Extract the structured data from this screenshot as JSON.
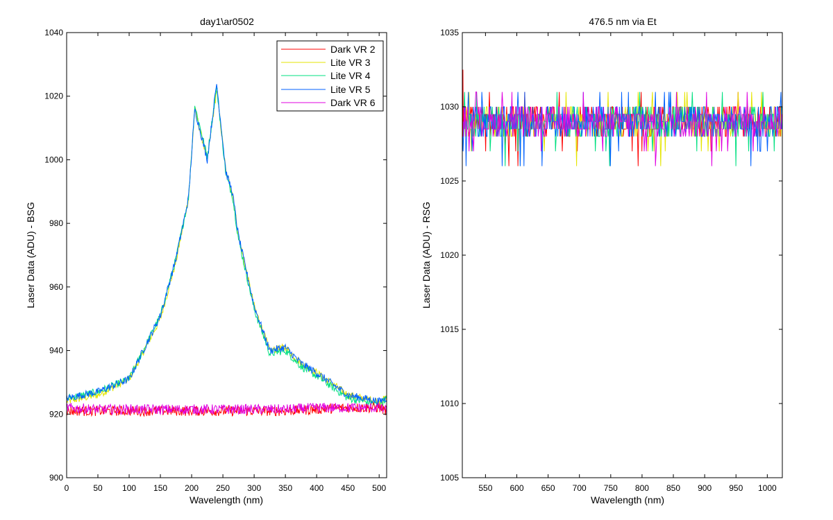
{
  "chart_data": [
    {
      "type": "line",
      "title": "day1\\ar0502",
      "xlabel": "Wavelength (nm)",
      "ylabel": "Laser Data (ADU) - BSG",
      "xlim": [
        0,
        512
      ],
      "ylim": [
        900,
        1040
      ],
      "xticks": [
        0,
        50,
        100,
        150,
        200,
        250,
        300,
        350,
        400,
        450,
        500
      ],
      "yticks": [
        900,
        920,
        940,
        960,
        980,
        1000,
        1020,
        1040
      ],
      "grid": false,
      "legend_position": "top-right",
      "series": [
        {
          "name": "Dark VR 2",
          "color": "#ff0000",
          "x": [
            0,
            50,
            100,
            150,
            200,
            250,
            300,
            350,
            400,
            450,
            500,
            512
          ],
          "y": [
            921,
            921,
            921,
            921,
            921,
            921,
            921,
            921,
            921.5,
            922,
            922,
            921
          ]
        },
        {
          "name": "Lite VR 3",
          "color": "#e5e500",
          "x": [
            0,
            50,
            100,
            150,
            175,
            195,
            205,
            225,
            240,
            255,
            265,
            275,
            300,
            325,
            350,
            375,
            400,
            450,
            500,
            512
          ],
          "y": [
            924,
            926,
            931,
            950,
            968,
            988,
            1016,
            1000,
            1022,
            996,
            990,
            976,
            954,
            940,
            941,
            936,
            933,
            926,
            924,
            925
          ]
        },
        {
          "name": "Lite VR 4",
          "color": "#00e080",
          "x": [
            0,
            50,
            100,
            150,
            175,
            195,
            205,
            225,
            240,
            255,
            265,
            275,
            300,
            325,
            350,
            375,
            400,
            450,
            500,
            512
          ],
          "y": [
            925,
            927,
            931,
            951,
            969,
            988,
            1017,
            1001,
            1023,
            995,
            989,
            975,
            953,
            939,
            940,
            935,
            932,
            925,
            923,
            925
          ]
        },
        {
          "name": "Lite VR 5",
          "color": "#0060ff",
          "x": [
            0,
            50,
            100,
            150,
            175,
            195,
            205,
            225,
            240,
            255,
            265,
            275,
            300,
            325,
            350,
            375,
            400,
            450,
            500,
            512
          ],
          "y": [
            925,
            927,
            931,
            951,
            969,
            988,
            1016,
            1000,
            1024,
            996,
            990,
            976,
            954,
            940,
            941,
            936,
            933,
            926,
            924,
            925
          ]
        },
        {
          "name": "Dark VR 6",
          "color": "#e000e0",
          "x": [
            0,
            50,
            100,
            150,
            200,
            250,
            300,
            350,
            400,
            450,
            500,
            512
          ],
          "y": [
            922,
            921.5,
            921.5,
            921.5,
            921.5,
            921.5,
            921.5,
            921.5,
            922,
            922,
            922,
            921
          ]
        }
      ]
    },
    {
      "type": "line",
      "title": "476.5 nm via Et",
      "xlabel": "Wavelength (nm)",
      "ylabel": "Laser Data (ADU) - RSG",
      "xlim": [
        513,
        1024
      ],
      "ylim": [
        1005,
        1035
      ],
      "xticks": [
        550,
        600,
        650,
        700,
        750,
        800,
        850,
        900,
        950,
        1000
      ],
      "yticks": [
        1005,
        1010,
        1015,
        1020,
        1025,
        1030,
        1035
      ],
      "grid": false,
      "series_colors": [
        "#ff0000",
        "#e5e500",
        "#00e080",
        "#0060ff",
        "#e000e0"
      ],
      "typical_range": [
        1028,
        1030
      ],
      "occasional_range": [
        1026,
        1031
      ]
    }
  ]
}
